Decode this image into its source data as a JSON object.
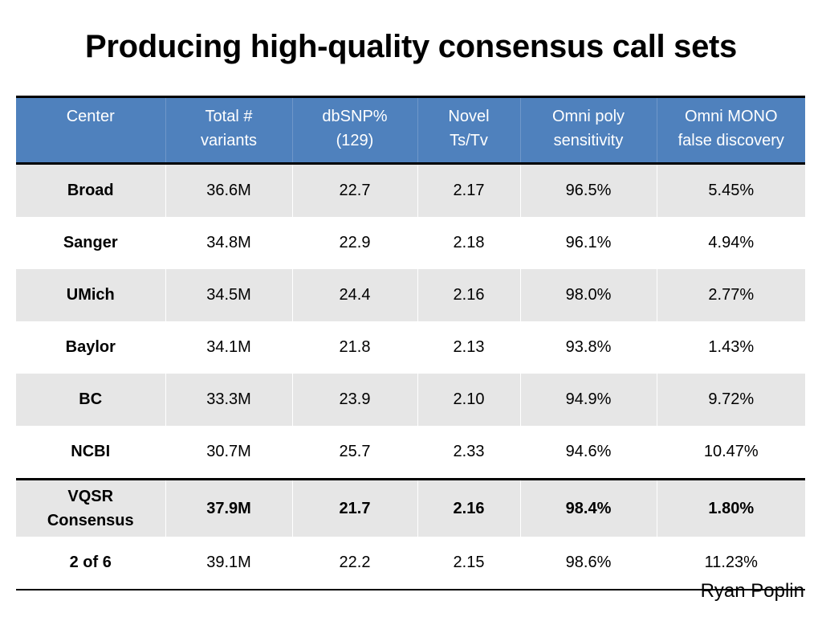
{
  "title": "Producing high-quality consensus call sets",
  "headers": [
    {
      "line1": "Center",
      "line2": ""
    },
    {
      "line1": "Total #",
      "line2": "variants"
    },
    {
      "line1": "dbSNP%",
      "line2": "(129)"
    },
    {
      "line1": "Novel",
      "line2": "Ts/Tv"
    },
    {
      "line1": "Omni poly",
      "line2": "sensitivity"
    },
    {
      "line1": "Omni MONO",
      "line2": "false discovery"
    }
  ],
  "rows": [
    {
      "center": "Broad",
      "center2": "",
      "total": "36.6M",
      "dbsnp": "22.7",
      "tstv": "2.17",
      "sens": "96.5%",
      "fdr": "5.45%"
    },
    {
      "center": "Sanger",
      "center2": "",
      "total": "34.8M",
      "dbsnp": "22.9",
      "tstv": "2.18",
      "sens": "96.1%",
      "fdr": "4.94%"
    },
    {
      "center": "UMich",
      "center2": "",
      "total": "34.5M",
      "dbsnp": "24.4",
      "tstv": "2.16",
      "sens": "98.0%",
      "fdr": "2.77%"
    },
    {
      "center": "Baylor",
      "center2": "",
      "total": "34.1M",
      "dbsnp": "21.8",
      "tstv": "2.13",
      "sens": "93.8%",
      "fdr": "1.43%"
    },
    {
      "center": "BC",
      "center2": "",
      "total": "33.3M",
      "dbsnp": "23.9",
      "tstv": "2.10",
      "sens": "94.9%",
      "fdr": "9.72%"
    },
    {
      "center": "NCBI",
      "center2": "",
      "total": "30.7M",
      "dbsnp": "25.7",
      "tstv": "2.33",
      "sens": "94.6%",
      "fdr": "10.47%"
    },
    {
      "center": "VQSR",
      "center2": "Consensus",
      "total": "37.9M",
      "dbsnp": "21.7",
      "tstv": "2.16",
      "sens": "98.4%",
      "fdr": "1.80%"
    },
    {
      "center": "2 of 6",
      "center2": "",
      "total": "39.1M",
      "dbsnp": "22.2",
      "tstv": "2.15",
      "sens": "98.6%",
      "fdr": "11.23%"
    }
  ],
  "credit": "Ryan Poplin",
  "colors": {
    "header_bg": "#4f81bd",
    "shade": "#e6e6e6"
  }
}
